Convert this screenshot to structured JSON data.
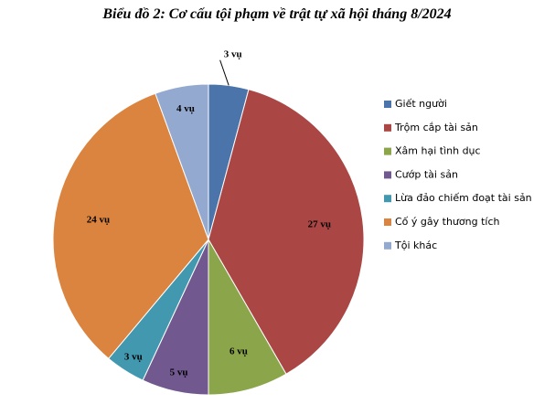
{
  "chart_data": {
    "type": "pie",
    "title": "Biểu đồ 2: Cơ cấu tội phạm về trật tự xã hội tháng 8/2024",
    "categories": [
      "Giết người",
      "Trộm cắp tài sản",
      "Xâm hại tình dục",
      "Cướp tài sản",
      "Lừa đảo chiếm đoạt tài sản",
      "Cố ý gây thương tích",
      "Tội khác"
    ],
    "values": [
      3,
      27,
      6,
      5,
      3,
      24,
      4
    ],
    "value_labels": [
      "3 vụ",
      "27 vụ",
      "6 vụ",
      "5 vụ",
      "3 vụ",
      "24 vụ",
      "4 vụ"
    ],
    "colors": [
      "#4a74aa",
      "#aa4744",
      "#8ba54a",
      "#71588f",
      "#4198af",
      "#db8440",
      "#93a9cf"
    ],
    "legend": "right"
  }
}
